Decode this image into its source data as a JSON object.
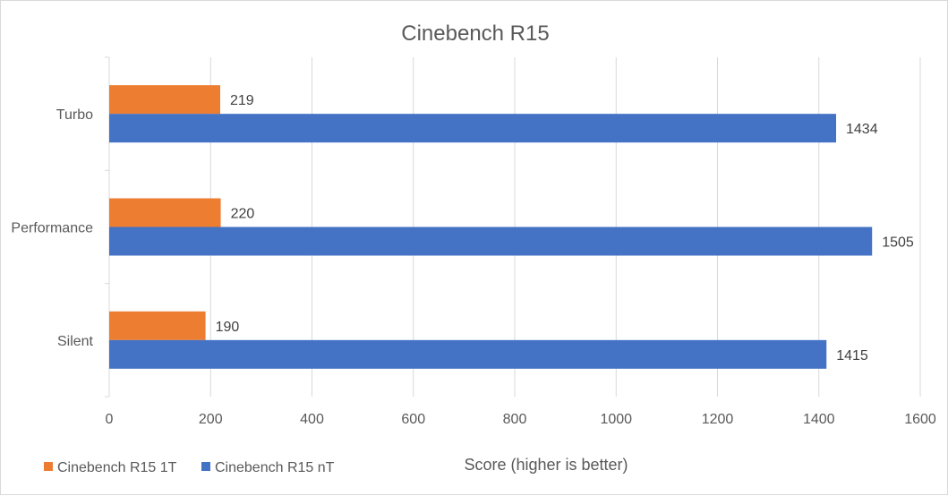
{
  "chart_data": {
    "type": "bar",
    "orientation": "horizontal",
    "title": "Cinebench R15",
    "xlabel": "Score (higher is better)",
    "ylabel": "",
    "xlim": [
      0,
      1600
    ],
    "x_ticks": [
      0,
      200,
      400,
      600,
      800,
      1000,
      1200,
      1400,
      1600
    ],
    "categories": [
      "Turbo",
      "Performance",
      "Silent"
    ],
    "series": [
      {
        "name": "Cinebench R15 1T",
        "color": "#ed7d31",
        "values": [
          219,
          220,
          190
        ]
      },
      {
        "name": "Cinebench R15 nT",
        "color": "#4472c4",
        "values": [
          1434,
          1505,
          1415
        ]
      }
    ],
    "grid": "vertical",
    "legend_position": "bottom-left",
    "data_labels": true
  }
}
